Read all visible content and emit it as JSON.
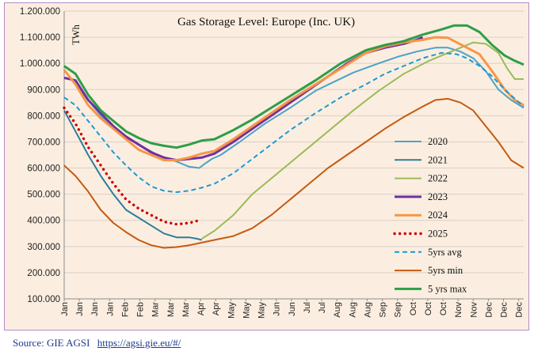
{
  "source": {
    "prefix": "Source: GIE AGSI",
    "link_text": "https://agsi.gie.eu/#/"
  },
  "chart_data": {
    "type": "line",
    "title": "Gas Storage Level: Europe (Inc. UK)",
    "unit": "TWh",
    "ylim": [
      100,
      1200
    ],
    "yticks": [
      "100.000",
      "200.000",
      "300.000",
      "400.000",
      "500.000",
      "600.000",
      "700.000",
      "800.000",
      "900.000",
      "1.000.000",
      "1.100.000",
      "1.200.000"
    ],
    "ytick_values": [
      100,
      200,
      300,
      400,
      500,
      600,
      700,
      800,
      900,
      1000,
      1100,
      1200
    ],
    "xlim": [
      1,
      365
    ],
    "xticks": [
      "Jan",
      "Jan",
      "Jan",
      "Jan",
      "Feb",
      "Feb",
      "Mar",
      "Mar",
      "Mar",
      "Apr",
      "Apr",
      "May",
      "May",
      "May",
      "Jun",
      "Jun",
      "Jul",
      "Jul",
      "Aug",
      "Aug",
      "Aug",
      "Sep",
      "Sep",
      "Oct",
      "Oct",
      "Oct",
      "Nov",
      "Nov",
      "Dec",
      "Dec",
      "Dec"
    ],
    "xtick_days": [
      1,
      13,
      25,
      37,
      49,
      61,
      73,
      85,
      97,
      109,
      121,
      133,
      145,
      157,
      169,
      181,
      193,
      205,
      217,
      229,
      241,
      253,
      265,
      277,
      289,
      301,
      313,
      325,
      337,
      349,
      361
    ],
    "grid": true,
    "legend_position": "bottom-right",
    "series": [
      {
        "name": "2020",
        "color": "#4aa3c8",
        "dash": "solid",
        "width": 2,
        "points": [
          [
            1,
            975
          ],
          [
            15,
            890
          ],
          [
            30,
            800
          ],
          [
            45,
            730
          ],
          [
            60,
            690
          ],
          [
            75,
            650
          ],
          [
            90,
            625
          ],
          [
            100,
            605
          ],
          [
            108,
            600
          ],
          [
            112,
            615
          ],
          [
            118,
            635
          ],
          [
            125,
            650
          ],
          [
            140,
            700
          ],
          [
            160,
            770
          ],
          [
            180,
            830
          ],
          [
            200,
            895
          ],
          [
            215,
            930
          ],
          [
            230,
            965
          ],
          [
            250,
            1000
          ],
          [
            265,
            1025
          ],
          [
            280,
            1045
          ],
          [
            295,
            1060
          ],
          [
            305,
            1060
          ],
          [
            315,
            1045
          ],
          [
            325,
            1020
          ],
          [
            335,
            970
          ],
          [
            345,
            900
          ],
          [
            355,
            860
          ],
          [
            365,
            830
          ]
        ]
      },
      {
        "name": "2021",
        "color": "#2e7d9a",
        "dash": "solid",
        "width": 2,
        "points": [
          [
            1,
            820
          ],
          [
            10,
            740
          ],
          [
            20,
            650
          ],
          [
            30,
            570
          ],
          [
            40,
            500
          ],
          [
            50,
            440
          ],
          [
            60,
            410
          ],
          [
            70,
            380
          ],
          [
            80,
            350
          ],
          [
            90,
            335
          ],
          [
            100,
            335
          ],
          [
            106,
            330
          ],
          [
            110,
            325
          ]
        ]
      },
      {
        "name": "2022",
        "color": "#9bbb59",
        "dash": "solid",
        "width": 2,
        "points": [
          [
            110,
            330
          ],
          [
            120,
            360
          ],
          [
            135,
            420
          ],
          [
            150,
            500
          ],
          [
            170,
            580
          ],
          [
            190,
            660
          ],
          [
            210,
            740
          ],
          [
            230,
            820
          ],
          [
            250,
            895
          ],
          [
            270,
            960
          ],
          [
            290,
            1010
          ],
          [
            310,
            1050
          ],
          [
            325,
            1080
          ],
          [
            335,
            1075
          ],
          [
            345,
            1040
          ],
          [
            352,
            980
          ],
          [
            358,
            940
          ],
          [
            365,
            940
          ]
        ]
      },
      {
        "name": "2023",
        "color": "#7030a0",
        "dash": "solid",
        "width": 3,
        "points": [
          [
            1,
            945
          ],
          [
            10,
            935
          ],
          [
            20,
            860
          ],
          [
            30,
            810
          ],
          [
            40,
            760
          ],
          [
            50,
            720
          ],
          [
            60,
            690
          ],
          [
            70,
            660
          ],
          [
            80,
            640
          ],
          [
            90,
            630
          ],
          [
            100,
            635
          ],
          [
            110,
            640
          ],
          [
            120,
            655
          ],
          [
            135,
            700
          ],
          [
            150,
            750
          ],
          [
            165,
            800
          ],
          [
            180,
            850
          ],
          [
            195,
            900
          ],
          [
            210,
            950
          ],
          [
            225,
            1000
          ],
          [
            240,
            1040
          ],
          [
            255,
            1060
          ],
          [
            270,
            1075
          ],
          [
            280,
            1090
          ],
          [
            285,
            1100
          ]
        ]
      },
      {
        "name": "2024",
        "color": "#f79646",
        "dash": "solid",
        "width": 3,
        "points": [
          [
            1,
            975
          ],
          [
            10,
            920
          ],
          [
            20,
            840
          ],
          [
            30,
            790
          ],
          [
            40,
            750
          ],
          [
            50,
            710
          ],
          [
            60,
            670
          ],
          [
            70,
            650
          ],
          [
            80,
            630
          ],
          [
            90,
            630
          ],
          [
            100,
            640
          ],
          [
            110,
            655
          ],
          [
            120,
            665
          ],
          [
            135,
            710
          ],
          [
            150,
            760
          ],
          [
            165,
            810
          ],
          [
            180,
            860
          ],
          [
            200,
            920
          ],
          [
            220,
            980
          ],
          [
            240,
            1040
          ],
          [
            255,
            1065
          ],
          [
            270,
            1080
          ],
          [
            285,
            1090
          ],
          [
            295,
            1100
          ],
          [
            305,
            1098
          ],
          [
            312,
            1080
          ],
          [
            320,
            1060
          ],
          [
            330,
            1035
          ],
          [
            340,
            970
          ],
          [
            350,
            900
          ],
          [
            358,
            860
          ],
          [
            365,
            840
          ]
        ]
      },
      {
        "name": "2025",
        "color": "#cc0000",
        "dash": "dots",
        "width": 3.4,
        "points": [
          [
            1,
            830
          ],
          [
            10,
            770
          ],
          [
            20,
            680
          ],
          [
            30,
            610
          ],
          [
            40,
            540
          ],
          [
            50,
            480
          ],
          [
            60,
            445
          ],
          [
            70,
            420
          ],
          [
            80,
            395
          ],
          [
            90,
            385
          ],
          [
            100,
            390
          ],
          [
            108,
            400
          ]
        ]
      },
      {
        "name": "5yrs avg",
        "color": "#1a9ad6",
        "dash": "dashed",
        "width": 2,
        "points": [
          [
            1,
            870
          ],
          [
            10,
            840
          ],
          [
            20,
            780
          ],
          [
            30,
            720
          ],
          [
            40,
            660
          ],
          [
            50,
            610
          ],
          [
            60,
            565
          ],
          [
            70,
            530
          ],
          [
            80,
            513
          ],
          [
            90,
            508
          ],
          [
            100,
            513
          ],
          [
            110,
            525
          ],
          [
            120,
            540
          ],
          [
            135,
            580
          ],
          [
            150,
            635
          ],
          [
            165,
            690
          ],
          [
            180,
            745
          ],
          [
            200,
            810
          ],
          [
            220,
            870
          ],
          [
            240,
            920
          ],
          [
            255,
            960
          ],
          [
            270,
            990
          ],
          [
            285,
            1020
          ],
          [
            300,
            1040
          ],
          [
            312,
            1035
          ],
          [
            320,
            1020
          ],
          [
            330,
            990
          ],
          [
            340,
            950
          ],
          [
            350,
            900
          ],
          [
            358,
            865
          ],
          [
            365,
            835
          ]
        ]
      },
      {
        "name": "5yrs min",
        "color": "#c55a11",
        "dash": "solid",
        "width": 2,
        "points": [
          [
            1,
            610
          ],
          [
            10,
            570
          ],
          [
            20,
            510
          ],
          [
            30,
            440
          ],
          [
            40,
            390
          ],
          [
            50,
            355
          ],
          [
            60,
            325
          ],
          [
            70,
            305
          ],
          [
            80,
            295
          ],
          [
            90,
            298
          ],
          [
            100,
            305
          ],
          [
            110,
            315
          ],
          [
            120,
            325
          ],
          [
            135,
            340
          ],
          [
            150,
            370
          ],
          [
            165,
            420
          ],
          [
            180,
            480
          ],
          [
            195,
            540
          ],
          [
            210,
            600
          ],
          [
            225,
            650
          ],
          [
            240,
            700
          ],
          [
            255,
            750
          ],
          [
            270,
            795
          ],
          [
            285,
            835
          ],
          [
            295,
            860
          ],
          [
            305,
            865
          ],
          [
            315,
            850
          ],
          [
            325,
            820
          ],
          [
            335,
            760
          ],
          [
            345,
            700
          ],
          [
            355,
            630
          ],
          [
            365,
            600
          ]
        ]
      },
      {
        "name": "5 yrs max",
        "color": "#2e9e48",
        "dash": "solid",
        "width": 3,
        "points": [
          [
            1,
            990
          ],
          [
            10,
            960
          ],
          [
            20,
            880
          ],
          [
            30,
            820
          ],
          [
            40,
            780
          ],
          [
            50,
            740
          ],
          [
            60,
            715
          ],
          [
            70,
            695
          ],
          [
            80,
            685
          ],
          [
            90,
            678
          ],
          [
            100,
            690
          ],
          [
            110,
            705
          ],
          [
            120,
            710
          ],
          [
            135,
            745
          ],
          [
            150,
            785
          ],
          [
            165,
            830
          ],
          [
            180,
            875
          ],
          [
            200,
            935
          ],
          [
            220,
            1000
          ],
          [
            240,
            1050
          ],
          [
            255,
            1070
          ],
          [
            270,
            1085
          ],
          [
            285,
            1110
          ],
          [
            300,
            1130
          ],
          [
            310,
            1145
          ],
          [
            320,
            1145
          ],
          [
            330,
            1120
          ],
          [
            340,
            1070
          ],
          [
            350,
            1030
          ],
          [
            358,
            1010
          ],
          [
            365,
            995
          ]
        ]
      }
    ]
  }
}
